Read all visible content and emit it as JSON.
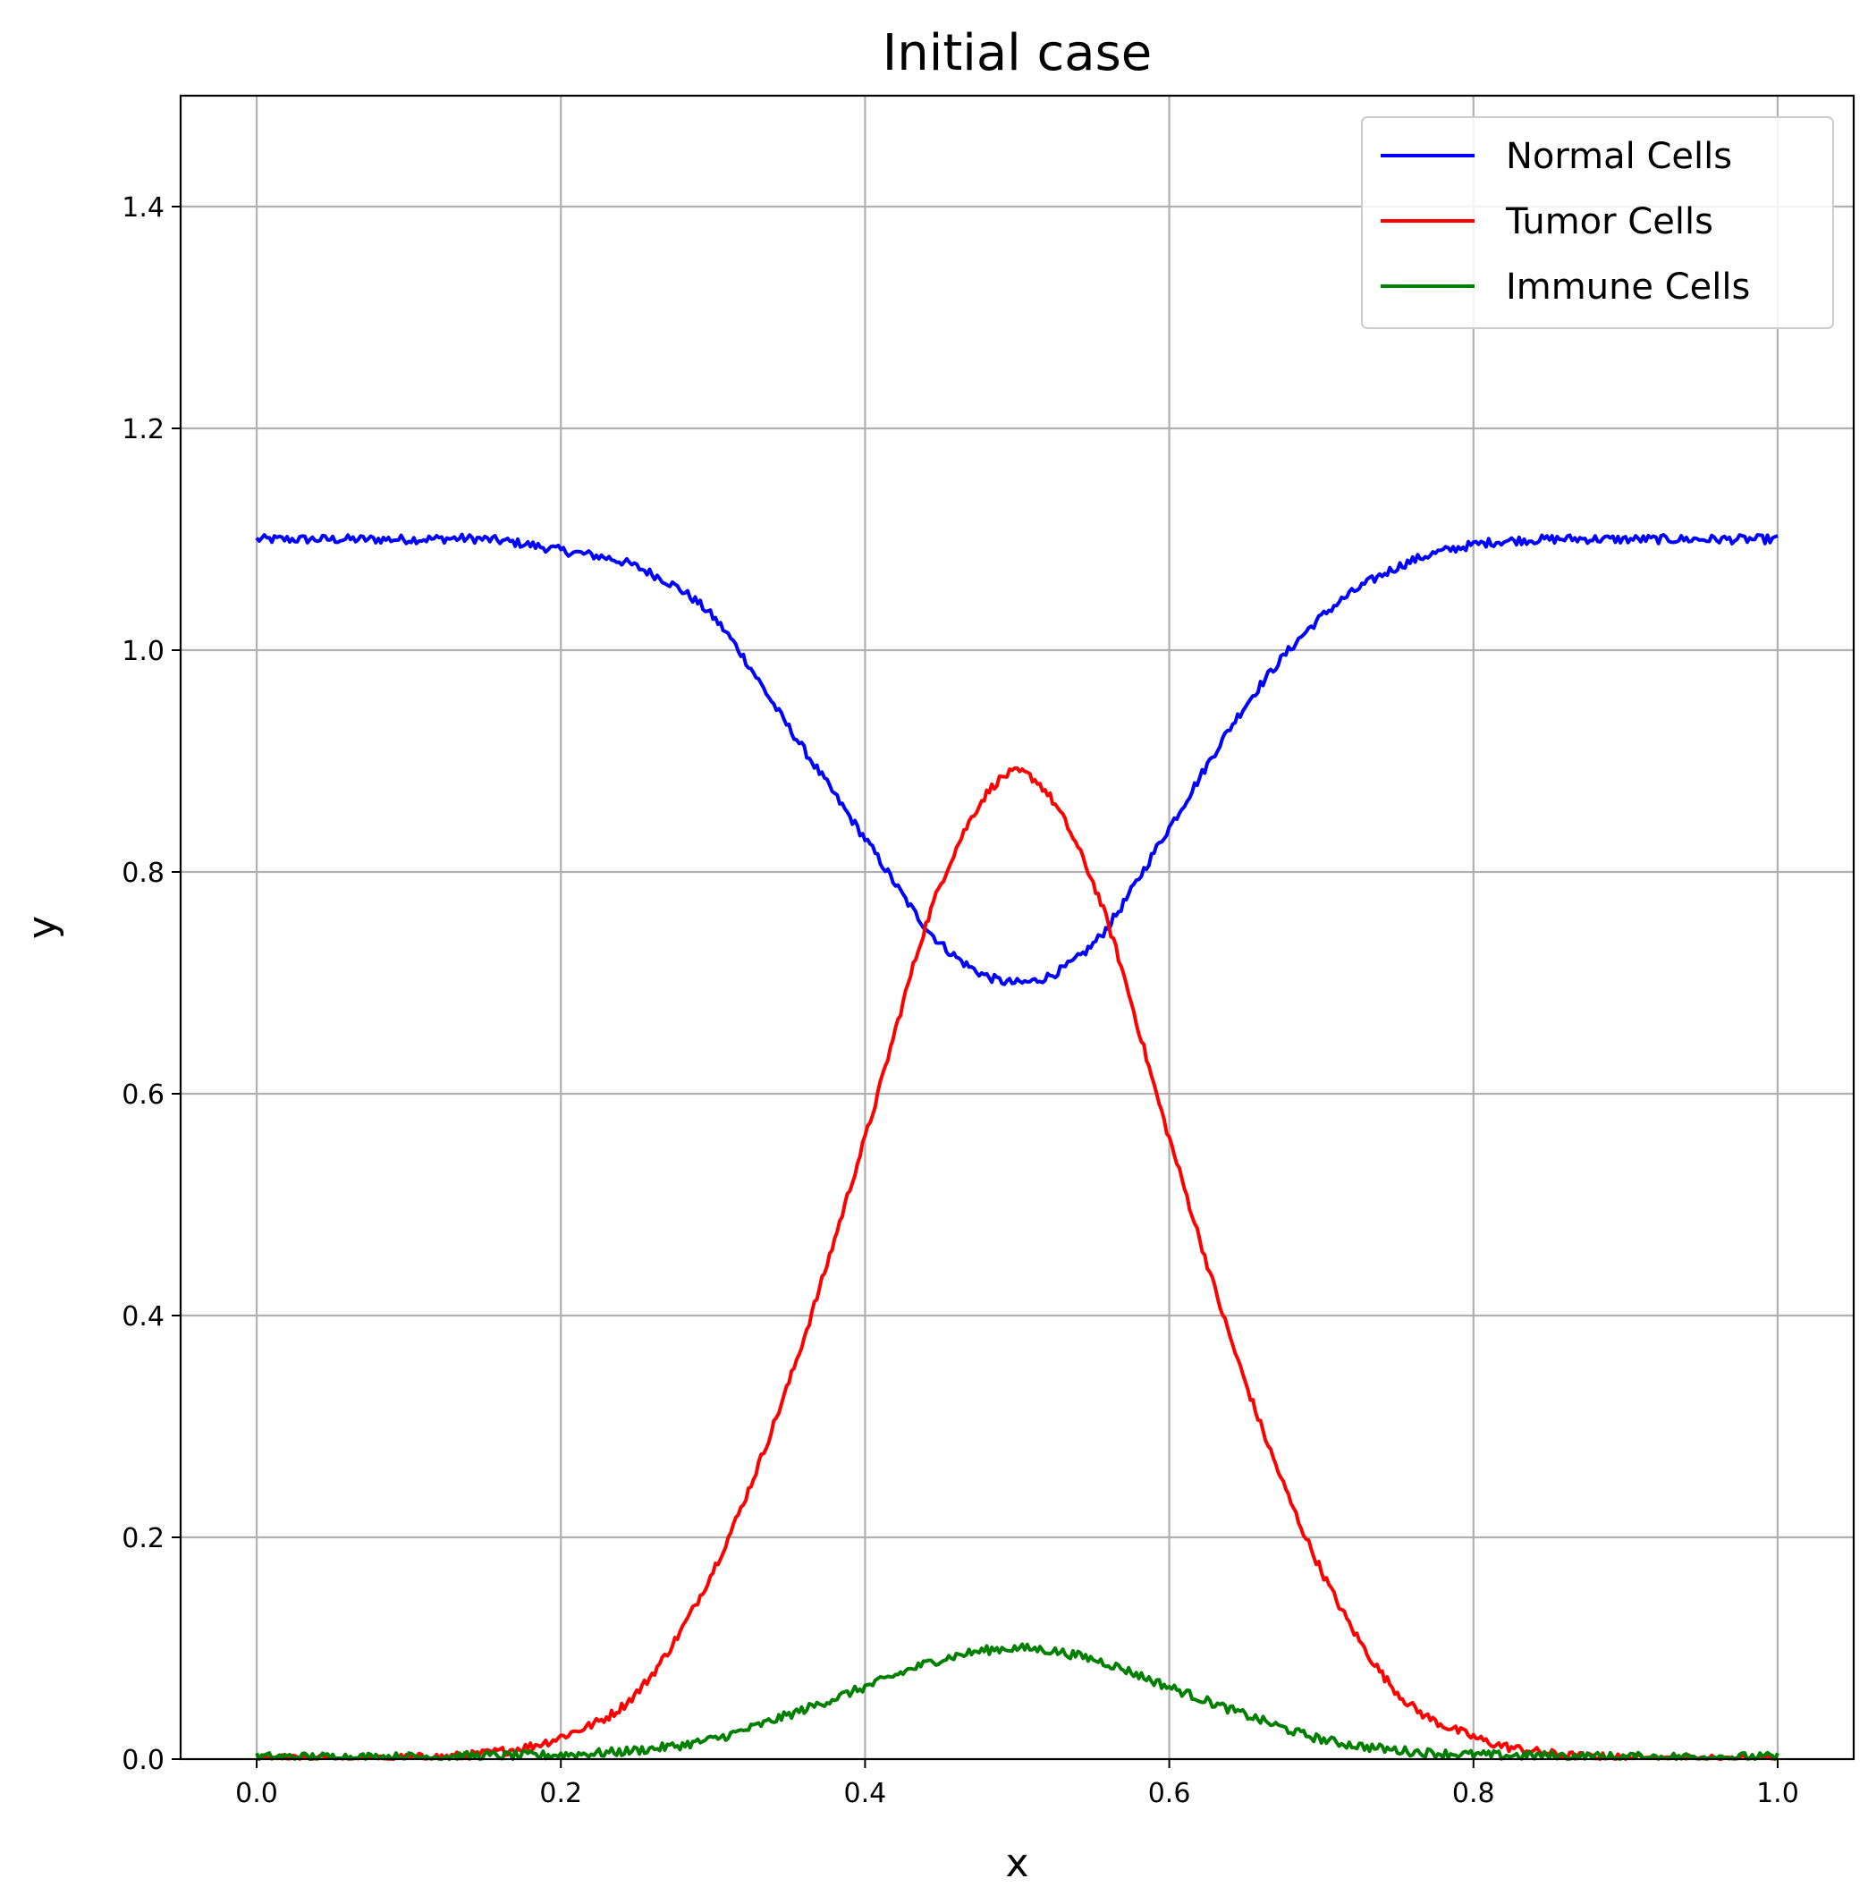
{
  "chart_data": {
    "type": "line",
    "title": "Initial case",
    "xlabel": "x",
    "ylabel": "y",
    "xlim": [
      -0.05,
      1.05
    ],
    "ylim": [
      0.0,
      1.5
    ],
    "xticks": [
      0.0,
      0.2,
      0.4,
      0.6,
      0.8,
      1.0
    ],
    "xtick_labels": [
      "0.0",
      "0.2",
      "0.4",
      "0.6",
      "0.8",
      "1.0"
    ],
    "yticks": [
      0.0,
      0.2,
      0.4,
      0.6,
      0.8,
      1.0,
      1.2,
      1.4
    ],
    "ytick_labels": [
      "0.0",
      "0.2",
      "0.4",
      "0.6",
      "0.8",
      "1.0",
      "1.2",
      "1.4"
    ],
    "grid": true,
    "legend_position": "top-right",
    "series": [
      {
        "name": "Normal Cells",
        "color": "#0000ff",
        "x": [
          0.0,
          0.05,
          0.1,
          0.15,
          0.2,
          0.25,
          0.3,
          0.35,
          0.4,
          0.45,
          0.5,
          0.55,
          0.6,
          0.65,
          0.7,
          0.75,
          0.8,
          0.85,
          0.9,
          0.95,
          1.0
        ],
        "y": [
          1.1,
          1.1,
          1.1,
          1.1,
          1.09,
          1.075,
          1.03,
          0.93,
          0.83,
          0.735,
          0.7,
          0.735,
          0.84,
          0.95,
          1.03,
          1.075,
          1.095,
          1.1,
          1.1,
          1.1,
          1.1
        ]
      },
      {
        "name": "Tumor Cells",
        "color": "#ff0000",
        "x": [
          0.0,
          0.05,
          0.1,
          0.15,
          0.2,
          0.25,
          0.3,
          0.35,
          0.4,
          0.45,
          0.5,
          0.55,
          0.6,
          0.65,
          0.7,
          0.75,
          0.8,
          0.85,
          0.9,
          0.95,
          1.0
        ],
        "y": [
          0.0,
          0.0,
          0.001,
          0.005,
          0.02,
          0.06,
          0.17,
          0.34,
          0.56,
          0.79,
          0.89,
          0.79,
          0.56,
          0.34,
          0.17,
          0.06,
          0.02,
          0.005,
          0.001,
          0.0,
          0.0
        ]
      },
      {
        "name": "Immune Cells",
        "color": "#008000",
        "x": [
          0.0,
          0.05,
          0.1,
          0.15,
          0.2,
          0.25,
          0.3,
          0.35,
          0.4,
          0.45,
          0.5,
          0.55,
          0.6,
          0.65,
          0.7,
          0.75,
          0.8,
          0.85,
          0.9,
          0.95,
          1.0
        ],
        "y": [
          0.002,
          0.002,
          0.002,
          0.003,
          0.004,
          0.008,
          0.018,
          0.04,
          0.065,
          0.09,
          0.1,
          0.09,
          0.065,
          0.04,
          0.018,
          0.008,
          0.004,
          0.003,
          0.002,
          0.002,
          0.002
        ]
      }
    ]
  }
}
